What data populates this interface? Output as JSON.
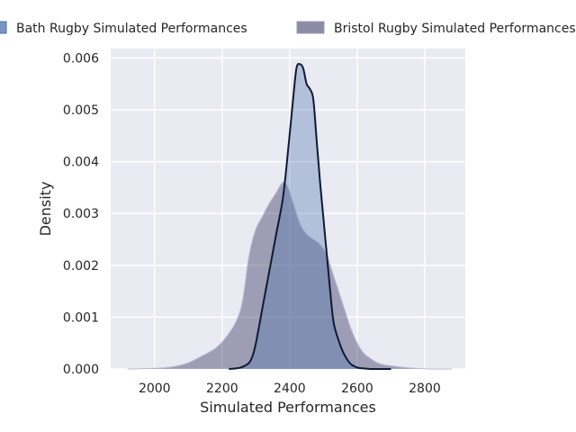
{
  "chart_data": {
    "type": "area",
    "xlabel": "Simulated Performances",
    "ylabel": "Density",
    "xlim": [
      1870,
      2920
    ],
    "ylim": [
      0,
      0.00618
    ],
    "xticks": [
      2000,
      2200,
      2400,
      2600,
      2800
    ],
    "yticks": [
      0.0,
      0.001,
      0.002,
      0.003,
      0.004,
      0.005,
      0.006
    ],
    "xtick_labels": [
      "2000",
      "2200",
      "2400",
      "2600",
      "2800"
    ],
    "ytick_labels": [
      "0.000",
      "0.001",
      "0.002",
      "0.003",
      "0.004",
      "0.005",
      "0.006"
    ],
    "grid": true,
    "legend_position": "top",
    "series": [
      {
        "name": "Bath Rugby Simulated Performances",
        "color": "#4c72b0",
        "line_color": "#0f1a33",
        "fill_opacity": 0.35,
        "x": [
          2220,
          2240,
          2260,
          2280,
          2290,
          2300,
          2320,
          2340,
          2360,
          2380,
          2395,
          2410,
          2420,
          2430,
          2440,
          2450,
          2460,
          2470,
          2480,
          2490,
          2500,
          2510,
          2520,
          2530,
          2545,
          2560,
          2580,
          2600,
          2620,
          2640,
          2660,
          2680,
          2700
        ],
        "y": [
          0.0,
          1e-05,
          4e-05,
          0.00012,
          0.00025,
          0.0005,
          0.0012,
          0.0019,
          0.0026,
          0.0033,
          0.0042,
          0.0052,
          0.0058,
          0.00588,
          0.0058,
          0.0055,
          0.0054,
          0.0052,
          0.0044,
          0.0036,
          0.0029,
          0.0022,
          0.0015,
          0.0009,
          0.00055,
          0.0003,
          0.0001,
          3e-05,
          1e-05,
          0.0,
          0.0,
          0.0,
          0.0
        ]
      },
      {
        "name": "Bristol Rugby Simulated Performances",
        "color": "#2b2d5a",
        "line_color": "#b8bcd4",
        "fill_opacity": 0.4,
        "x": [
          1920,
          1980,
          2020,
          2060,
          2100,
          2140,
          2180,
          2210,
          2240,
          2260,
          2280,
          2300,
          2320,
          2340,
          2360,
          2380,
          2395,
          2410,
          2430,
          2450,
          2470,
          2490,
          2510,
          2520,
          2540,
          2560,
          2580,
          2600,
          2620,
          2640,
          2660,
          2680,
          2700,
          2740,
          2780,
          2820,
          2880
        ],
        "y": [
          0.0,
          1e-05,
          2e-05,
          5e-05,
          0.00012,
          0.00025,
          0.0004,
          0.0006,
          0.0009,
          0.0013,
          0.0022,
          0.0027,
          0.00295,
          0.0032,
          0.0034,
          0.0036,
          0.0035,
          0.0032,
          0.0028,
          0.0026,
          0.0025,
          0.0024,
          0.0022,
          0.002,
          0.0016,
          0.0012,
          0.0008,
          0.0005,
          0.0003,
          0.0002,
          0.00012,
          8e-05,
          6e-05,
          3e-05,
          1e-05,
          0.0,
          0.0
        ]
      }
    ]
  }
}
